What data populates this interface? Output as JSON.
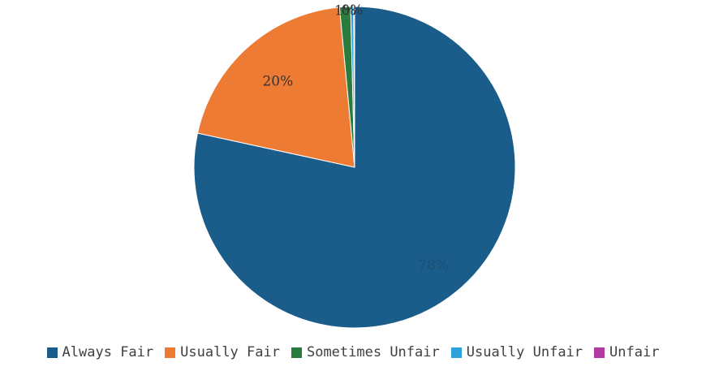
{
  "chart_data": {
    "type": "pie",
    "title": "",
    "categories": [
      "Always Fair",
      "Usually Fair",
      "Sometimes Unfair",
      "Usually Unfair",
      "Unfair"
    ],
    "values": [
      78.4,
      20.1,
      1.1,
      0.3,
      0.1
    ],
    "colors": [
      "#1a5d8a",
      "#ee7b34",
      "#2a7b3e",
      "#2ea3db",
      "#b23aa0"
    ],
    "data_labels": [
      "78%",
      "20%",
      "1%",
      "0%",
      ""
    ],
    "legend_position": "bottom"
  }
}
